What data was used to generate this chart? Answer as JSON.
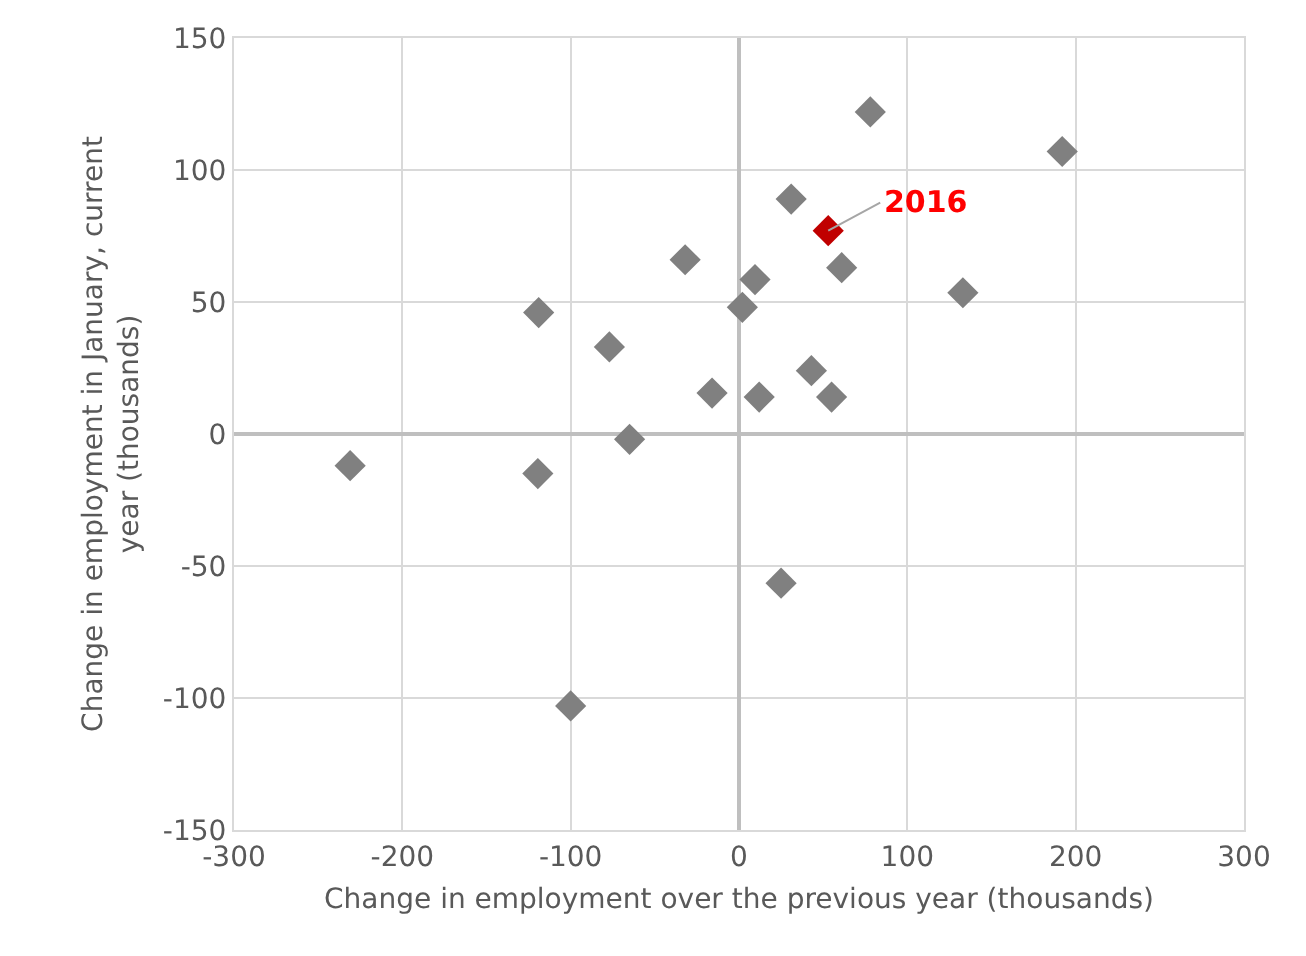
{
  "chart_data": {
    "type": "scatter",
    "xlabel": "Change in employment over the previous year (thousands)",
    "ylabel": "Change in employment in January, current year (thousands)",
    "series": [
      {
        "color": "#808080",
        "x": [
          -231,
          -119.5,
          -119,
          -32,
          -77,
          -65,
          -16,
          -100,
          2,
          9.5,
          12,
          31,
          61,
          43,
          55,
          78,
          192,
          133,
          25
        ],
        "values": [
          -12,
          -15,
          46,
          66,
          33,
          -2,
          15.5,
          -103,
          48,
          58.5,
          14,
          89,
          63,
          24,
          14,
          122,
          107,
          53.5,
          -56.5
        ]
      },
      {
        "color": "#c00000",
        "x": [
          53
        ],
        "values": [
          77
        ]
      }
    ],
    "annotations": [
      {
        "text": "2016",
        "x": 53,
        "y": 77
      }
    ],
    "xlim": [
      -300,
      300
    ],
    "xticks": [
      -300,
      -200,
      -100,
      0,
      100,
      200,
      300
    ],
    "ylim": [
      -150,
      150
    ],
    "yticks": [
      -150,
      -100,
      -50,
      0,
      50,
      100,
      150
    ],
    "grid": true,
    "marker": "diamond"
  }
}
